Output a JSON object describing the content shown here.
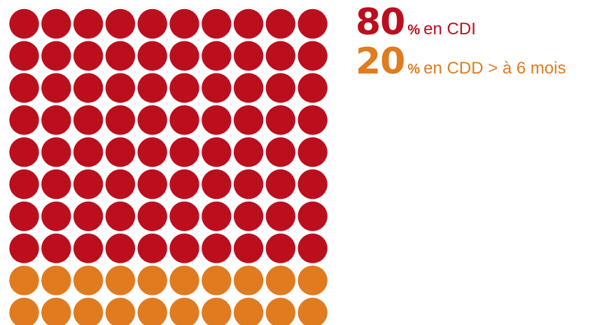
{
  "chart_data": {
    "type": "waffle",
    "total": 100,
    "columns": 10,
    "rows": 10,
    "series": [
      {
        "value": 80,
        "number": "80",
        "unit": "%",
        "label": "en CDI",
        "color": "#bb0f1e"
      },
      {
        "value": 20,
        "number": "20",
        "unit": "%",
        "label": "en CDD > à 6 mois",
        "color": "#e07b1f"
      }
    ]
  }
}
